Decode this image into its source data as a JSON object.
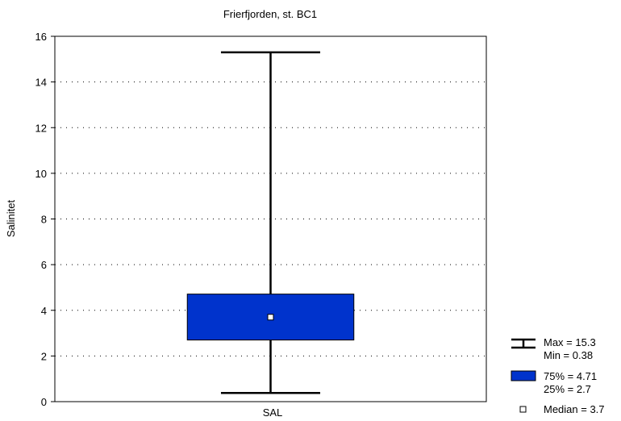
{
  "chart_data": {
    "type": "boxplot",
    "title": "Frierfjorden, st. BC1",
    "xlabel": "",
    "ylabel": "Salinitet",
    "ylim": [
      0,
      16
    ],
    "yticks": [
      0,
      2,
      4,
      6,
      8,
      10,
      12,
      14,
      16
    ],
    "grid": "dotted horizontal",
    "categories": [
      "SAL"
    ],
    "series": [
      {
        "category": "SAL",
        "min": 0.38,
        "q1": 2.7,
        "median": 3.7,
        "q3": 4.71,
        "max": 15.3
      }
    ],
    "legend_position": "bottom-right",
    "legend": {
      "whisker_max": "Max = 15.3",
      "whisker_min": "Min = 0.38",
      "box_upper": "75% = 4.71",
      "box_lower": "25% = 2.7",
      "median": "Median = 3.7"
    },
    "colors": {
      "box_fill": "#0033cc",
      "box_stroke": "#000000",
      "whisker": "#000000",
      "median_marker": "#ffffff",
      "grid": "#000000"
    }
  }
}
